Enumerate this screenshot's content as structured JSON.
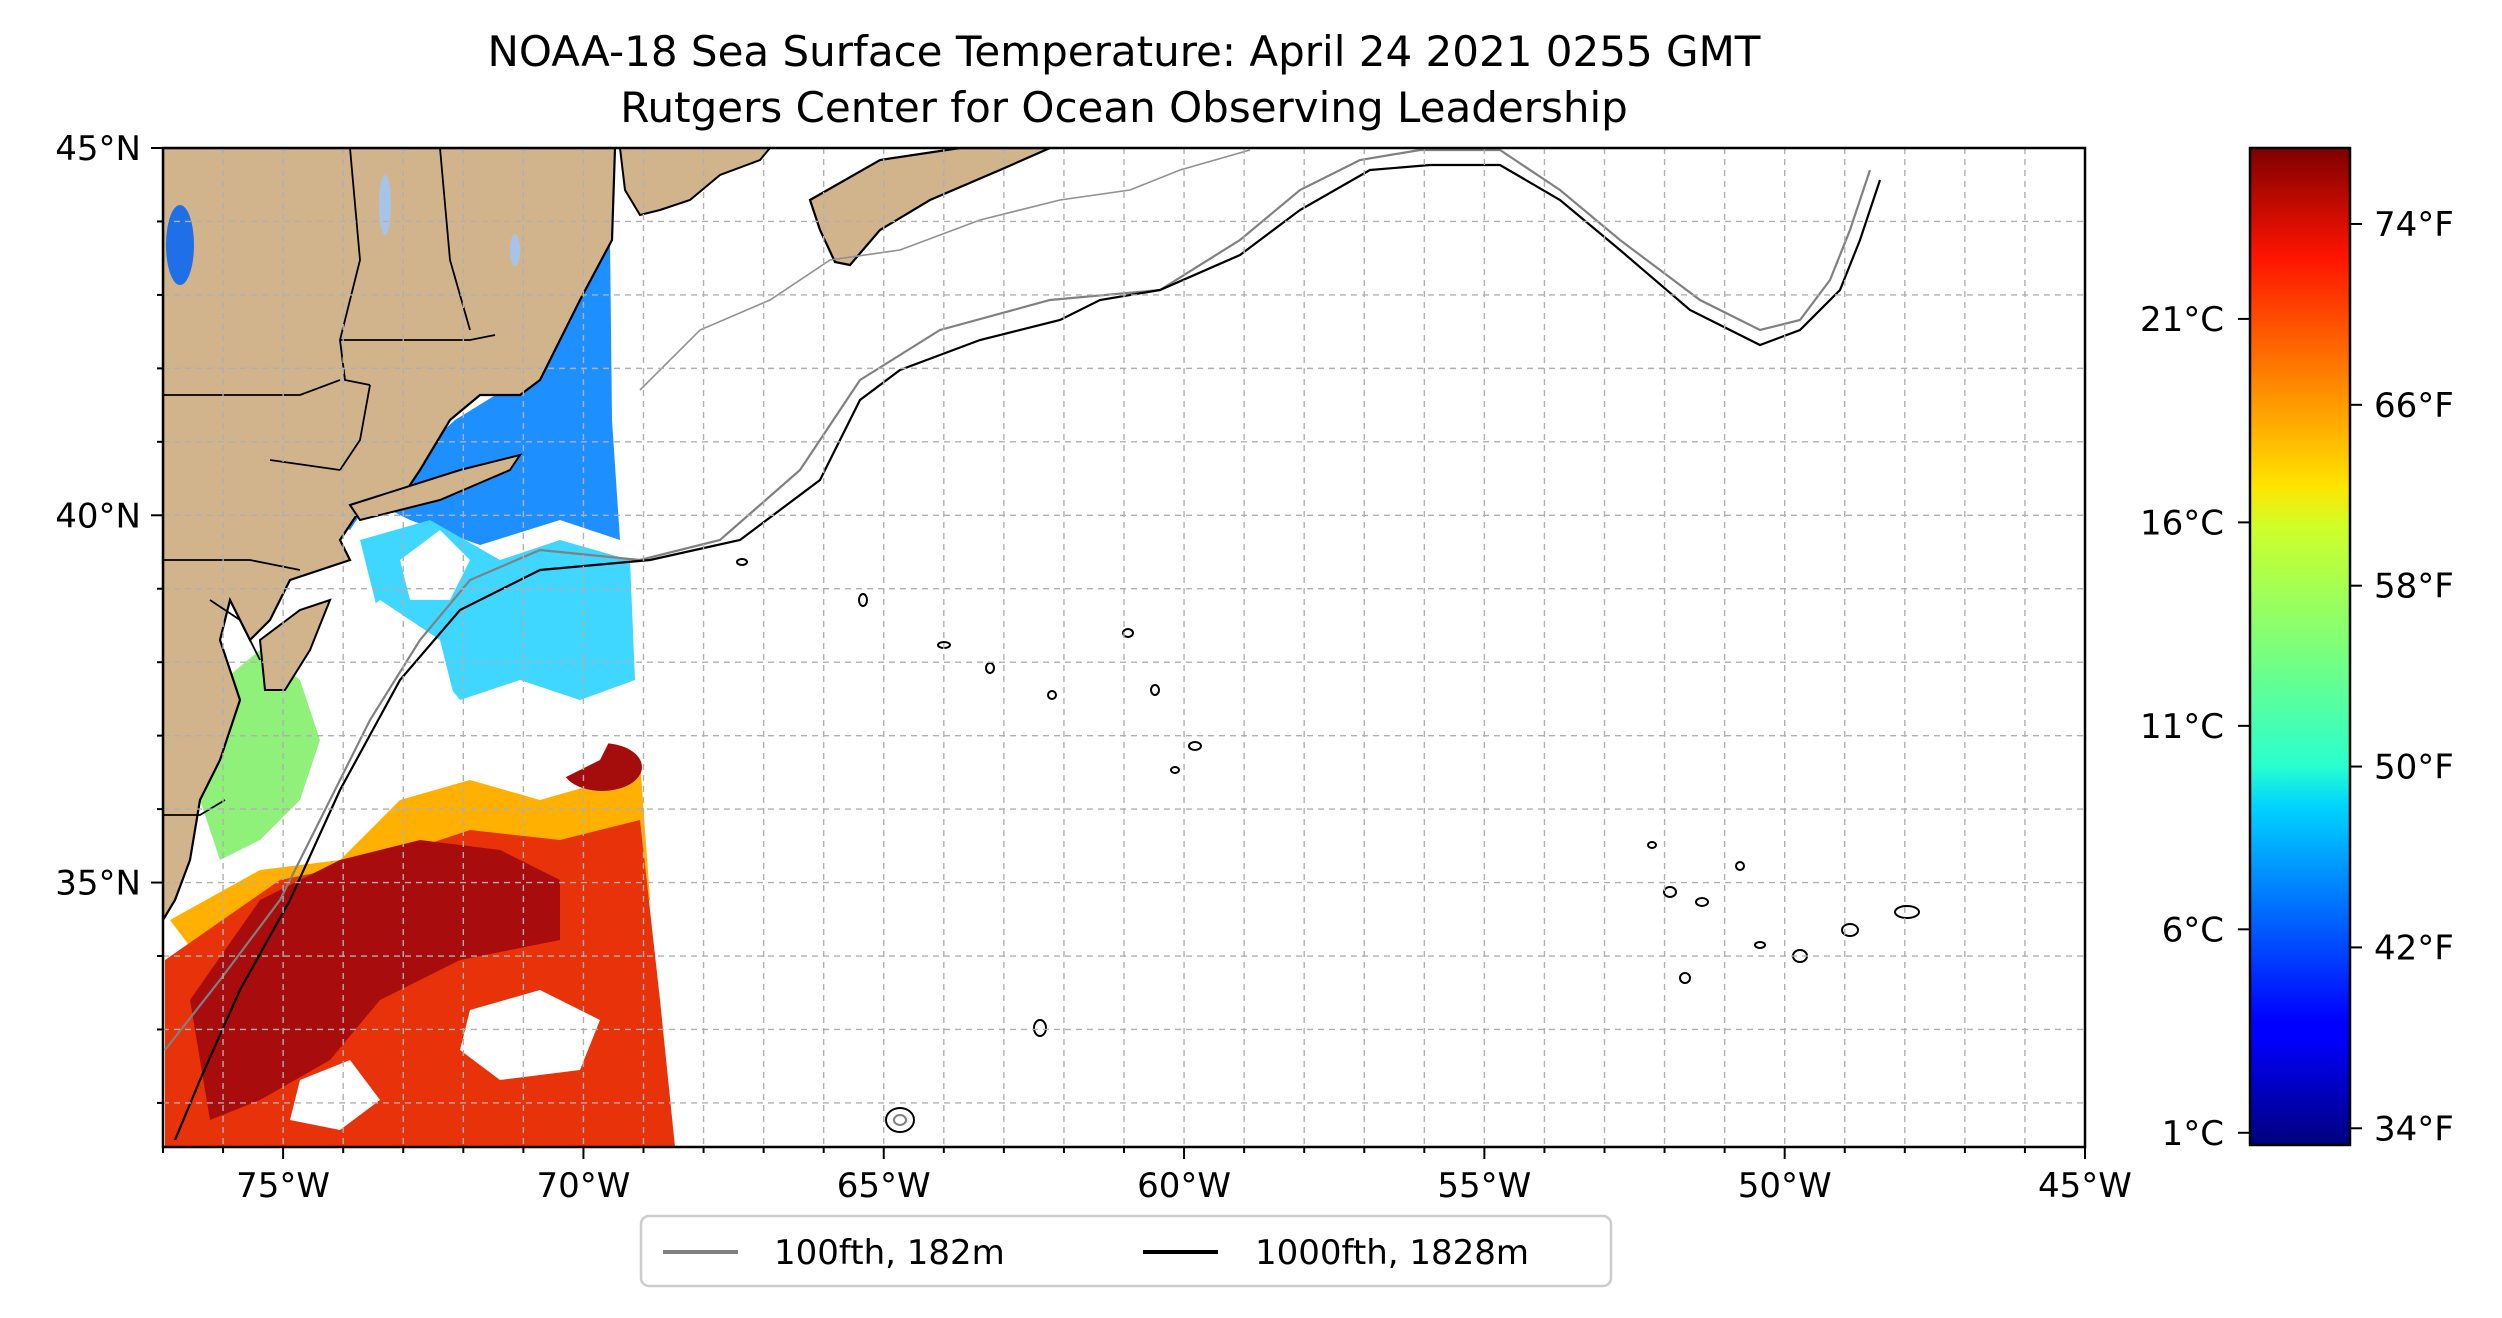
{
  "title": "NOAA-18 Sea Surface Temperature: April 24 2021 0255 GMT",
  "subtitle": "Rutgers Center for Ocean Observing Leadership",
  "map": {
    "lon_range": [
      -77,
      -45
    ],
    "lat_range": [
      31.4,
      45
    ],
    "lon_ticks": [
      {
        "value": -75,
        "label": "75°W"
      },
      {
        "value": -70,
        "label": "70°W"
      },
      {
        "value": -65,
        "label": "65°W"
      },
      {
        "value": -60,
        "label": "60°W"
      },
      {
        "value": -55,
        "label": "55°W"
      },
      {
        "value": -50,
        "label": "50°W"
      },
      {
        "value": -45,
        "label": "45°W"
      }
    ],
    "lat_ticks": [
      {
        "value": 45,
        "label": "45°N"
      },
      {
        "value": 40,
        "label": "40°N"
      },
      {
        "value": 35,
        "label": "35°N"
      }
    ],
    "grid": true,
    "land_color": "#d2b48c",
    "lake_color": "#a6c4e8"
  },
  "legend": {
    "placement": "bottom-center",
    "items": [
      {
        "label": "100fth, 182m",
        "color": "#808080"
      },
      {
        "label": "1000fth, 1828m",
        "color": "#000000"
      }
    ]
  },
  "colorbar": {
    "colormap": "jet",
    "celsius_range": [
      0.7,
      25.2
    ],
    "celsius_ticks": [
      {
        "value": 1,
        "label": "1°C"
      },
      {
        "value": 6,
        "label": "6°C"
      },
      {
        "value": 11,
        "label": "11°C"
      },
      {
        "value": 16,
        "label": "16°C"
      },
      {
        "value": 21,
        "label": "21°C"
      }
    ],
    "fahrenheit_ticks": [
      {
        "value": 34,
        "label": "34°F"
      },
      {
        "value": 42,
        "label": "42°F"
      },
      {
        "value": 50,
        "label": "50°F"
      },
      {
        "value": 58,
        "label": "58°F"
      },
      {
        "value": 66,
        "label": "66°F"
      },
      {
        "value": 74,
        "label": "74°F"
      }
    ]
  }
}
